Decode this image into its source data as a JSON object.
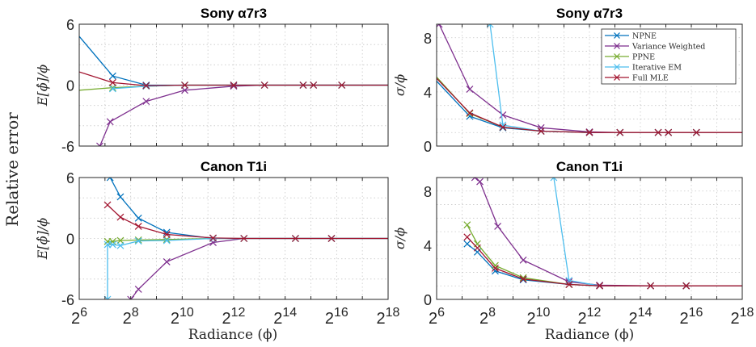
{
  "figure": {
    "ylabel_shared": "Relative error",
    "xlabel": "Radiance (ϕ)"
  },
  "legend": {
    "entries": [
      {
        "name": "NPNE",
        "color": "#0072BD"
      },
      {
        "name": "Variance Weighted",
        "color": "#7E2F8E"
      },
      {
        "name": "PPNE",
        "color": "#77AC30"
      },
      {
        "name": "Iterative EM",
        "color": "#4DBEEE"
      },
      {
        "name": "Full MLE",
        "color": "#A2142F"
      }
    ]
  },
  "chart_data": [
    {
      "type": "line",
      "title": "Sony   α7r3",
      "ylabel": "E[ϕ̂]/ϕ",
      "x_scale": "log2",
      "xlim_exp": [
        6,
        18
      ],
      "ylim": [
        -6,
        6
      ],
      "yticks": [
        -6,
        0,
        6
      ],
      "grid": true,
      "series": [
        {
          "name": "NPNE",
          "color": "#0072BD",
          "points": [
            [
              6,
              4.8
            ],
            [
              7.3,
              0.9
            ],
            [
              8.6,
              0.0
            ],
            [
              10.1,
              0.0
            ],
            [
              12.0,
              0.0
            ],
            [
              13.2,
              0.0
            ],
            [
              14.7,
              0.0
            ],
            [
              15.1,
              0.0
            ],
            [
              16.2,
              0.0
            ],
            [
              18,
              0.0
            ]
          ]
        },
        {
          "name": "Variance Weighted",
          "color": "#7E2F8E",
          "points": [
            [
              6.8,
              -6.0
            ],
            [
              7.2,
              -3.6
            ],
            [
              8.6,
              -1.6
            ],
            [
              10.1,
              -0.5
            ],
            [
              12.0,
              -0.1
            ],
            [
              13.2,
              0.0
            ],
            [
              14.7,
              0.0
            ],
            [
              15.1,
              0.0
            ],
            [
              16.2,
              0.0
            ],
            [
              18,
              0.0
            ]
          ]
        },
        {
          "name": "PPNE",
          "color": "#77AC30",
          "points": [
            [
              6,
              -0.5
            ],
            [
              7.3,
              -0.25
            ],
            [
              8.6,
              -0.1
            ],
            [
              10.1,
              0.0
            ],
            [
              12.0,
              0.0
            ],
            [
              13.2,
              0.0
            ],
            [
              14.7,
              0.0
            ],
            [
              15.1,
              0.0
            ],
            [
              16.2,
              0.0
            ],
            [
              18,
              0.0
            ]
          ]
        },
        {
          "name": "Iterative EM",
          "color": "#4DBEEE",
          "points": [
            [
              7.3,
              -0.35
            ],
            [
              8.6,
              -0.1
            ],
            [
              10.1,
              0.0
            ],
            [
              12.0,
              0.0
            ],
            [
              13.2,
              0.0
            ],
            [
              14.7,
              0.0
            ],
            [
              15.1,
              0.0
            ],
            [
              16.2,
              0.0
            ],
            [
              18,
              0.0
            ]
          ]
        },
        {
          "name": "Full MLE",
          "color": "#A2142F",
          "points": [
            [
              6,
              1.3
            ],
            [
              7.3,
              0.25
            ],
            [
              8.6,
              -0.05
            ],
            [
              10.1,
              0.0
            ],
            [
              12.0,
              0.0
            ],
            [
              13.2,
              0.0
            ],
            [
              14.7,
              0.0
            ],
            [
              15.1,
              0.0
            ],
            [
              16.2,
              0.0
            ],
            [
              18,
              0.0
            ]
          ]
        }
      ]
    },
    {
      "type": "line",
      "title": "Sony   α7r3",
      "ylabel": "σ/ϕ",
      "x_scale": "log2",
      "xlim_exp": [
        6,
        18
      ],
      "ylim": [
        0,
        9
      ],
      "yticks": [
        0,
        4,
        8
      ],
      "grid": true,
      "legend": "top-right",
      "series": [
        {
          "name": "NPNE",
          "color": "#0072BD",
          "points": [
            [
              6,
              4.8
            ],
            [
              7.3,
              2.2
            ],
            [
              8.6,
              1.35
            ],
            [
              10.1,
              1.1
            ],
            [
              12.0,
              1.0
            ],
            [
              13.2,
              1.0
            ],
            [
              14.7,
              1.0
            ],
            [
              15.1,
              1.0
            ],
            [
              16.2,
              1.0
            ],
            [
              18,
              1.0
            ]
          ]
        },
        {
          "name": "Variance Weighted",
          "color": "#7E2F8E",
          "points": [
            [
              6.1,
              9.0
            ],
            [
              7.3,
              4.2
            ],
            [
              8.6,
              2.3
            ],
            [
              10.1,
              1.35
            ],
            [
              12.0,
              1.05
            ],
            [
              13.2,
              1.0
            ],
            [
              14.7,
              1.0
            ],
            [
              15.1,
              1.0
            ],
            [
              16.2,
              1.0
            ],
            [
              18,
              1.0
            ]
          ]
        },
        {
          "name": "PPNE",
          "color": "#77AC30",
          "points": [
            [
              6,
              5.1
            ],
            [
              7.3,
              2.4
            ],
            [
              8.6,
              1.4
            ],
            [
              10.1,
              1.1
            ],
            [
              12.0,
              1.0
            ],
            [
              13.2,
              1.0
            ],
            [
              14.7,
              1.0
            ],
            [
              15.1,
              1.0
            ],
            [
              16.2,
              1.0
            ],
            [
              18,
              1.0
            ]
          ]
        },
        {
          "name": "Iterative EM",
          "color": "#4DBEEE",
          "points": [
            [
              8.1,
              9.0
            ],
            [
              8.6,
              1.55
            ],
            [
              10.1,
              1.1
            ],
            [
              12.0,
              1.0
            ],
            [
              13.2,
              1.0
            ],
            [
              14.7,
              1.0
            ],
            [
              15.1,
              1.0
            ],
            [
              16.2,
              1.0
            ],
            [
              18,
              1.0
            ]
          ]
        },
        {
          "name": "Full MLE",
          "color": "#A2142F",
          "points": [
            [
              6,
              5.0
            ],
            [
              7.3,
              2.45
            ],
            [
              8.6,
              1.4
            ],
            [
              10.1,
              1.1
            ],
            [
              12.0,
              1.0
            ],
            [
              13.2,
              1.0
            ],
            [
              14.7,
              1.0
            ],
            [
              15.1,
              1.0
            ],
            [
              16.2,
              1.0
            ],
            [
              18,
              1.0
            ]
          ]
        }
      ]
    },
    {
      "type": "line",
      "title": "Canon T1i",
      "ylabel": "E[ϕ̂]/ϕ",
      "x_scale": "log2",
      "xlim_exp": [
        6,
        18
      ],
      "ylim": [
        -6,
        6
      ],
      "yticks": [
        -6,
        0,
        6
      ],
      "grid": true,
      "series": [
        {
          "name": "NPNE",
          "color": "#0072BD",
          "points": [
            [
              7.2,
              6.0
            ],
            [
              7.6,
              4.1
            ],
            [
              8.3,
              2.0
            ],
            [
              9.4,
              0.6
            ],
            [
              11.2,
              0.0
            ],
            [
              12.4,
              0.0
            ],
            [
              14.4,
              0.0
            ],
            [
              15.8,
              0.0
            ],
            [
              18,
              0.0
            ]
          ]
        },
        {
          "name": "Variance Weighted",
          "color": "#7E2F8E",
          "points": [
            [
              8.0,
              -6.0
            ],
            [
              8.3,
              -5.0
            ],
            [
              9.4,
              -2.3
            ],
            [
              11.2,
              -0.4
            ],
            [
              12.4,
              0.0
            ],
            [
              14.4,
              0.0
            ],
            [
              15.8,
              0.0
            ],
            [
              18,
              0.0
            ]
          ]
        },
        {
          "name": "PPNE",
          "color": "#77AC30",
          "points": [
            [
              7.1,
              -0.3
            ],
            [
              7.3,
              -0.3
            ],
            [
              7.6,
              -0.2
            ],
            [
              8.3,
              -0.15
            ],
            [
              9.4,
              -0.1
            ],
            [
              11.2,
              0.0
            ],
            [
              12.4,
              0.0
            ],
            [
              14.4,
              0.0
            ],
            [
              15.8,
              0.0
            ],
            [
              18,
              0.0
            ]
          ]
        },
        {
          "name": "Iterative EM",
          "color": "#4DBEEE",
          "points": [
            [
              7.1,
              -6.0
            ],
            [
              7.1,
              -0.6
            ],
            [
              7.3,
              -0.6
            ],
            [
              7.6,
              -0.7
            ],
            [
              8.3,
              -0.25
            ],
            [
              9.4,
              -0.2
            ],
            [
              11.2,
              0.0
            ],
            [
              12.4,
              0.0
            ],
            [
              14.4,
              0.0
            ],
            [
              15.8,
              0.0
            ],
            [
              18,
              0.0
            ]
          ]
        },
        {
          "name": "Full MLE",
          "color": "#A2142F",
          "points": [
            [
              7.1,
              3.3
            ],
            [
              7.6,
              2.1
            ],
            [
              8.3,
              1.2
            ],
            [
              9.4,
              0.4
            ],
            [
              11.2,
              0.05
            ],
            [
              12.4,
              0.0
            ],
            [
              14.4,
              0.0
            ],
            [
              15.8,
              0.0
            ],
            [
              18,
              0.0
            ]
          ]
        }
      ]
    },
    {
      "type": "line",
      "title": "Canon T1i",
      "ylabel": "σ/ϕ",
      "x_scale": "log2",
      "xlim_exp": [
        6,
        18
      ],
      "ylim": [
        0,
        9
      ],
      "yticks": [
        0,
        4,
        8
      ],
      "grid": true,
      "series": [
        {
          "name": "NPNE",
          "color": "#0072BD",
          "points": [
            [
              7.2,
              4.1
            ],
            [
              7.6,
              3.5
            ],
            [
              8.3,
              2.1
            ],
            [
              9.4,
              1.45
            ],
            [
              11.2,
              1.1
            ],
            [
              12.4,
              1.0
            ],
            [
              14.4,
              1.0
            ],
            [
              15.8,
              1.0
            ],
            [
              18,
              1.0
            ]
          ]
        },
        {
          "name": "Variance Weighted",
          "color": "#7E2F8E",
          "points": [
            [
              7.5,
              9.0
            ],
            [
              7.7,
              8.7
            ],
            [
              8.4,
              5.4
            ],
            [
              9.4,
              2.9
            ],
            [
              11.2,
              1.3
            ],
            [
              12.4,
              1.05
            ],
            [
              14.4,
              1.0
            ],
            [
              15.8,
              1.0
            ],
            [
              18,
              1.0
            ]
          ]
        },
        {
          "name": "PPNE",
          "color": "#77AC30",
          "points": [
            [
              7.2,
              5.5
            ],
            [
              7.6,
              4.1
            ],
            [
              8.3,
              2.5
            ],
            [
              9.4,
              1.6
            ],
            [
              11.2,
              1.1
            ],
            [
              12.4,
              1.0
            ],
            [
              14.4,
              1.0
            ],
            [
              15.8,
              1.0
            ],
            [
              18,
              1.0
            ]
          ]
        },
        {
          "name": "Iterative EM",
          "color": "#4DBEEE",
          "points": [
            [
              10.6,
              9.0
            ],
            [
              11.2,
              1.4
            ],
            [
              12.4,
              1.0
            ],
            [
              14.4,
              1.0
            ],
            [
              15.8,
              1.0
            ],
            [
              18,
              1.0
            ]
          ]
        },
        {
          "name": "Full MLE",
          "color": "#A2142F",
          "points": [
            [
              7.2,
              4.6
            ],
            [
              7.6,
              3.8
            ],
            [
              8.3,
              2.3
            ],
            [
              9.4,
              1.5
            ],
            [
              11.2,
              1.1
            ],
            [
              12.4,
              1.0
            ],
            [
              14.4,
              1.0
            ],
            [
              15.8,
              1.0
            ],
            [
              18,
              1.0
            ]
          ]
        }
      ]
    }
  ]
}
